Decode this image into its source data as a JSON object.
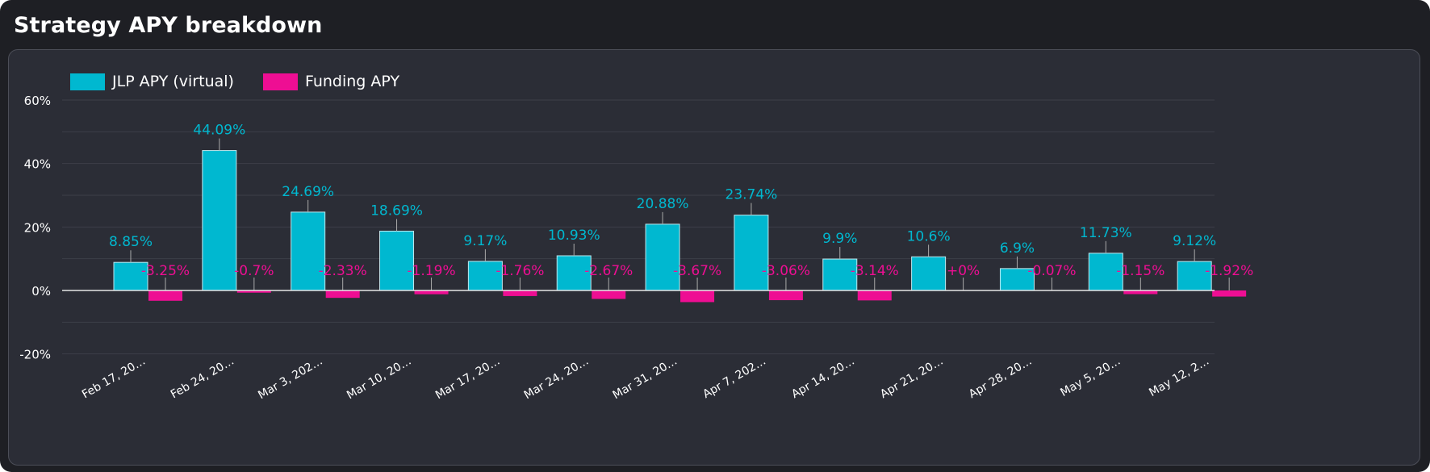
{
  "window": {
    "title": "Strategy APY breakdown"
  },
  "chart_data": {
    "type": "bar",
    "title": "",
    "xlabel": "",
    "ylabel": "",
    "ylim": [
      -25,
      60
    ],
    "yticks": [
      60,
      40,
      20,
      0,
      -20
    ],
    "ytick_labels": [
      "60%",
      "40%",
      "20%",
      "0%",
      "-20%"
    ],
    "grid": true,
    "legend": "top-left",
    "categories": [
      "Feb 17, 20…",
      "Feb 24, 20…",
      "Mar 3, 202…",
      "Mar 10, 20…",
      "Mar 17, 20…",
      "Mar 24, 20…",
      "Mar 31, 20…",
      "Apr 7, 202…",
      "Apr 14, 20…",
      "Apr 21, 20…",
      "Apr 28, 20…",
      "May 5, 20…",
      "May 12, 2…"
    ],
    "series": [
      {
        "name": "JLP APY (virtual)",
        "color": "#00b8d0",
        "values": [
          8.85,
          44.09,
          24.69,
          18.69,
          9.17,
          10.93,
          20.88,
          23.74,
          9.9,
          10.6,
          6.9,
          11.73,
          9.12
        ],
        "labels": [
          "8.85%",
          "44.09%",
          "24.69%",
          "18.69%",
          "9.17%",
          "10.93%",
          "20.88%",
          "23.74%",
          "9.9%",
          "10.6%",
          "6.9%",
          "11.73%",
          "9.12%"
        ]
      },
      {
        "name": "Funding APY",
        "color": "#ee0e93",
        "values": [
          -3.25,
          -0.7,
          -2.33,
          -1.19,
          -1.76,
          -2.67,
          -3.67,
          -3.06,
          -3.14,
          0,
          -0.07,
          -1.15,
          -1.92
        ],
        "labels": [
          "-3.25%",
          "-0.7%",
          "-2.33%",
          "-1.19%",
          "-1.76%",
          "-2.67%",
          "-3.67%",
          "-3.06%",
          "-3.14%",
          "+0%",
          "-0.07%",
          "-1.15%",
          "-1.92%"
        ]
      }
    ]
  },
  "colors": {
    "background": "#1e1f24",
    "panel": "#2b2d36",
    "grid": "#3d3f48",
    "axis_text": "#ffffff",
    "jlp": "#00b8d0",
    "funding": "#ee0e93"
  }
}
